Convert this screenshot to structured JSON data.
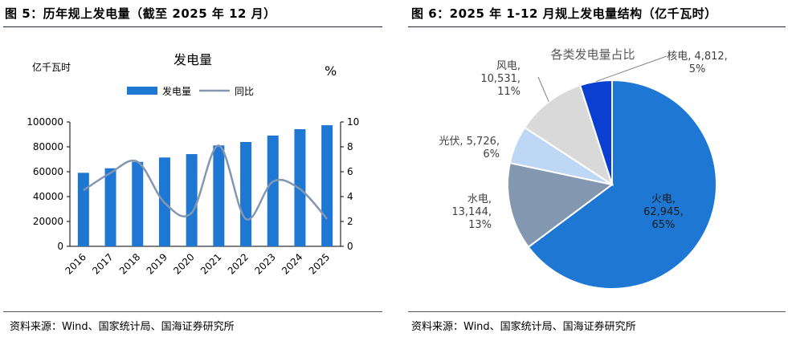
{
  "figure1": {
    "title": "图 5：历年规上发电量（截至 2025 年 12 月）",
    "source": "资料来源：Wind、国家统计局、国海证券研究所"
  },
  "figure2": {
    "title": "图 6：2025 年 1-12 月规上发电量结构（亿千瓦时）",
    "source": "资料来源：Wind、国家统计局、国海证券研究所"
  },
  "colors": {
    "bar": "#1f77d4",
    "line": "#8497b0",
    "pie_thermal": "#1f77d4",
    "pie_hydro": "#8497b0",
    "pie_solar": "#bdd7f5",
    "pie_wind": "#d9d9d9",
    "pie_nuclear": "#0b3fd1"
  },
  "chart_data": [
    {
      "type": "bar",
      "title": "发电量",
      "ylabel": "亿千瓦时",
      "y2label": "%",
      "categories": [
        "2016",
        "2017",
        "2018",
        "2019",
        "2020",
        "2021",
        "2022",
        "2023",
        "2024",
        "2025"
      ],
      "series": [
        {
          "name": "发电量",
          "type": "bar",
          "axis": "left",
          "values": [
            59111,
            62758,
            67914,
            71422,
            74170,
            81122,
            83886,
            89091,
            94181,
            97370
          ]
        },
        {
          "name": "同比",
          "type": "line",
          "axis": "right",
          "values": [
            4.5,
            5.9,
            6.8,
            3.5,
            2.7,
            8.1,
            2.2,
            5.2,
            4.6,
            2.2
          ]
        }
      ],
      "ylim": [
        0,
        100000
      ],
      "yticks": [
        "0",
        "20000",
        "40000",
        "60000",
        "80000",
        "100000"
      ],
      "y2lim": [
        0,
        10
      ],
      "y2ticks": [
        "0",
        "2",
        "4",
        "6",
        "8",
        "10"
      ],
      "legend": "top",
      "grid": false
    },
    {
      "type": "pie",
      "title": "各类发电量占比",
      "slices": [
        {
          "label": "火电",
          "value": 62945,
          "value_text": "62,945",
          "pct": "65%"
        },
        {
          "label": "水电",
          "value": 13144,
          "value_text": "13,144",
          "pct": "13%"
        },
        {
          "label": "光伏",
          "value": 5726,
          "value_text": "5,726",
          "pct": "6%"
        },
        {
          "label": "风电",
          "value": 10531,
          "value_text": "10,531",
          "pct": "11%"
        },
        {
          "label": "核电",
          "value": 4812,
          "value_text": "4,812",
          "pct": "5%"
        }
      ]
    }
  ]
}
